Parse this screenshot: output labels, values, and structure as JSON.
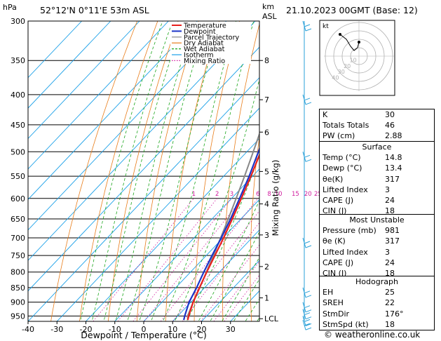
{
  "header": {
    "location": "52°12'N  0°11'E  53m  ASL",
    "datetime": "21.10.2023  00GMT  (Base: 12)",
    "hpa_label": "hPa",
    "km_label": "km",
    "asl_label": "ASL"
  },
  "chart_data": {
    "type": "skew-t",
    "xlabel": "Dewpoint / Temperature (°C)",
    "ylabel_right": "Mixing Ratio (g/kg)",
    "pressure_ticks": [
      300,
      350,
      400,
      450,
      500,
      550,
      600,
      650,
      700,
      750,
      800,
      850,
      900,
      950
    ],
    "pressure_range": [
      300,
      970
    ],
    "temp_ticks": [
      -40,
      -30,
      -20,
      -10,
      0,
      10,
      20,
      30
    ],
    "temp_range_at_bottom": [
      -40,
      40
    ],
    "km_ticks": [
      {
        "label": "8",
        "p": 350
      },
      {
        "label": "7",
        "p": 408
      },
      {
        "label": "6",
        "p": 463
      },
      {
        "label": "5",
        "p": 540
      },
      {
        "label": "4",
        "p": 613
      },
      {
        "label": "3",
        "p": 692
      },
      {
        "label": "2",
        "p": 783
      },
      {
        "label": "1",
        "p": 885
      },
      {
        "label": "LCL",
        "p": 960
      }
    ],
    "mixing_ratio_labels": [
      "1",
      "2",
      "3",
      "4",
      "6",
      "8",
      "10",
      "15",
      "20",
      "25"
    ],
    "mixing_ratio_values": [
      1,
      2,
      3,
      4,
      6,
      8,
      10,
      15,
      20,
      25
    ],
    "legend": [
      {
        "label": "Temperature",
        "color": "#e8201c"
      },
      {
        "label": "Dewpoint",
        "color": "#1c34c8"
      },
      {
        "label": "Parcel Trajectory",
        "color": "#888888"
      },
      {
        "label": "Dry Adiabat",
        "color": "#e87d1a"
      },
      {
        "label": "Wet Adiabat",
        "color": "#1aa51a"
      },
      {
        "label": "Isotherm",
        "color": "#1aa0e8"
      },
      {
        "label": "Mixing Ratio",
        "color": "#d01a9e"
      }
    ],
    "temperature_profile": [
      {
        "p": 965,
        "t": 14.8
      },
      {
        "p": 950,
        "t": 13.8
      },
      {
        "p": 900,
        "t": 10.8
      },
      {
        "p": 850,
        "t": 8.2
      },
      {
        "p": 800,
        "t": 5.6
      },
      {
        "p": 750,
        "t": 3.0
      },
      {
        "p": 700,
        "t": 0.2
      },
      {
        "p": 650,
        "t": -3.0
      },
      {
        "p": 600,
        "t": -6.6
      },
      {
        "p": 550,
        "t": -10.6
      },
      {
        "p": 500,
        "t": -15.2
      },
      {
        "p": 450,
        "t": -20.4
      },
      {
        "p": 400,
        "t": -26.5
      },
      {
        "p": 350,
        "t": -33.5
      },
      {
        "p": 300,
        "t": -41.5
      }
    ],
    "dewpoint_profile": [
      {
        "p": 965,
        "t": 13.4
      },
      {
        "p": 950,
        "t": 12.4
      },
      {
        "p": 900,
        "t": 9.4
      },
      {
        "p": 850,
        "t": 7.2
      },
      {
        "p": 800,
        "t": 4.6
      },
      {
        "p": 750,
        "t": 2.0
      },
      {
        "p": 700,
        "t": -0.6
      },
      {
        "p": 650,
        "t": -3.6
      },
      {
        "p": 600,
        "t": -7.2
      },
      {
        "p": 550,
        "t": -11.2
      },
      {
        "p": 500,
        "t": -16.0
      },
      {
        "p": 450,
        "t": -21.6
      },
      {
        "p": 400,
        "t": -28.0
      },
      {
        "p": 350,
        "t": -35.5
      },
      {
        "p": 300,
        "t": -44.0
      }
    ],
    "parcel_profile": [
      {
        "p": 965,
        "t": 14.8
      },
      {
        "p": 950,
        "t": 13.4
      },
      {
        "p": 900,
        "t": 10.8
      },
      {
        "p": 850,
        "t": 8.3
      },
      {
        "p": 800,
        "t": 5.5
      },
      {
        "p": 750,
        "t": 2.5
      },
      {
        "p": 700,
        "t": -0.8
      },
      {
        "p": 650,
        "t": -4.4
      },
      {
        "p": 600,
        "t": -8.4
      },
      {
        "p": 550,
        "t": -12.8
      },
      {
        "p": 500,
        "t": -17.8
      },
      {
        "p": 450,
        "t": -23.4
      },
      {
        "p": 400,
        "t": -29.8
      },
      {
        "p": 350,
        "t": -37.0
      },
      {
        "p": 300,
        "t": -45.0
      }
    ]
  },
  "hodograph": {
    "label": "kt",
    "ring_labels": [
      "10",
      "20",
      "30",
      "40"
    ]
  },
  "indices": {
    "rows": [
      {
        "k": "K",
        "v": "30"
      },
      {
        "k": "Totals Totals",
        "v": "46"
      },
      {
        "k": "PW (cm)",
        "v": "2.88"
      }
    ]
  },
  "surface": {
    "title": "Surface",
    "rows": [
      {
        "k": "Temp (°C)",
        "v": "14.8"
      },
      {
        "k": "Dewp (°C)",
        "v": "13.4"
      },
      {
        "k": "θe(K)",
        "v": "317"
      },
      {
        "k": "Lifted Index",
        "v": "3"
      },
      {
        "k": "CAPE (J)",
        "v": "24"
      },
      {
        "k": "CIN (J)",
        "v": "18"
      }
    ]
  },
  "most_unstable": {
    "title": "Most Unstable",
    "rows": [
      {
        "k": "Pressure (mb)",
        "v": "981"
      },
      {
        "k": "θe (K)",
        "v": "317"
      },
      {
        "k": "Lifted Index",
        "v": "3"
      },
      {
        "k": "CAPE (J)",
        "v": "24"
      },
      {
        "k": "CIN (J)",
        "v": "18"
      }
    ]
  },
  "hodograph_table": {
    "title": "Hodograph",
    "rows": [
      {
        "k": "EH",
        "v": "25"
      },
      {
        "k": "SREH",
        "v": "22"
      },
      {
        "k": "StmDir",
        "v": "176°"
      },
      {
        "k": "StmSpd (kt)",
        "v": "18"
      }
    ]
  },
  "credit": "© weatheronline.co.uk",
  "colors": {
    "temperature": "#e8201c",
    "dewpoint": "#1c34c8",
    "parcel": "#888888",
    "dry": "#e87d1a",
    "wet": "#1aa51a",
    "iso": "#1aa0e8",
    "mixing": "#d01a9e",
    "wind": "#2aa0d8"
  }
}
